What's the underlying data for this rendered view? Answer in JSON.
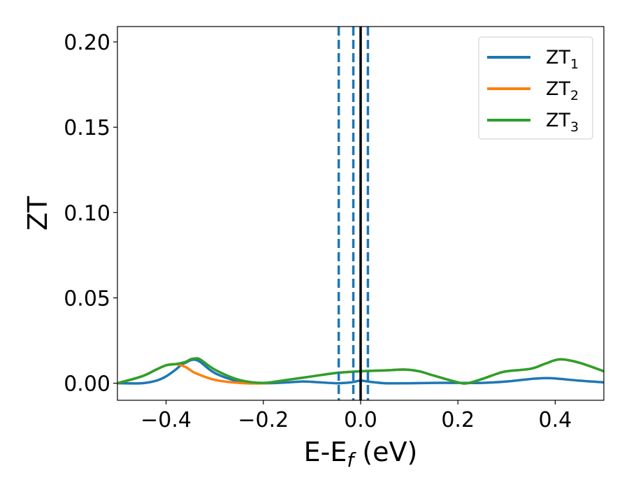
{
  "chart_data": {
    "type": "line",
    "xlabel": "E-E",
    "xlabel_sub": "f",
    "xlabel_suffix": " (eV)",
    "ylabel": "ZT",
    "xlim": [
      -0.5,
      0.5
    ],
    "ylim": [
      -0.01,
      0.209
    ],
    "xticks": [
      -0.4,
      -0.2,
      0.0,
      0.2,
      0.4
    ],
    "xtick_labels": [
      "−0.4",
      "−0.2",
      "0.0",
      "0.2",
      "0.4"
    ],
    "yticks": [
      0.0,
      0.05,
      0.1,
      0.15,
      0.2
    ],
    "ytick_labels": [
      "0.00",
      "0.05",
      "0.10",
      "0.15",
      "0.20"
    ],
    "grid": false,
    "legend_position": "top-right",
    "series": [
      {
        "name": "ZT",
        "sub": "1",
        "color": "#1f77b4",
        "x": [
          -0.5,
          -0.45,
          -0.42,
          -0.4,
          -0.38,
          -0.37,
          -0.36,
          -0.345,
          -0.33,
          -0.3,
          -0.25,
          -0.2,
          -0.15,
          -0.12,
          -0.1,
          -0.05,
          -0.02,
          0.0,
          0.02,
          0.05,
          0.1,
          0.15,
          0.2,
          0.25,
          0.3,
          0.35,
          0.38,
          0.4,
          0.45,
          0.5
        ],
        "y": [
          0.0,
          0.0,
          0.0015,
          0.004,
          0.008,
          0.0105,
          0.012,
          0.0138,
          0.0125,
          0.006,
          0.001,
          0.0,
          0.0005,
          0.001,
          0.0008,
          0.0,
          0.0005,
          0.0015,
          0.0008,
          0.0,
          0.0,
          0.0002,
          0.0002,
          0.0002,
          0.001,
          0.0025,
          0.003,
          0.0028,
          0.0015,
          0.0005
        ]
      },
      {
        "name": "ZT",
        "sub": "2",
        "color": "#ff7f0e",
        "x": [
          -0.5,
          -0.45,
          -0.42,
          -0.4,
          -0.38,
          -0.36,
          -0.34,
          -0.3,
          -0.25,
          -0.2,
          -0.15,
          -0.1,
          -0.05,
          0.0,
          0.05,
          0.09,
          0.12,
          0.15,
          0.2,
          0.22,
          0.25,
          0.28,
          0.3,
          0.35,
          0.38,
          0.41,
          0.45,
          0.5
        ],
        "y": [
          0.0,
          0.004,
          0.008,
          0.0105,
          0.0112,
          0.0095,
          0.006,
          0.002,
          0.0002,
          0.0,
          0.002,
          0.004,
          0.006,
          0.007,
          0.0075,
          0.008,
          0.007,
          0.0045,
          0.0005,
          0.0,
          0.0025,
          0.0055,
          0.007,
          0.0085,
          0.0115,
          0.014,
          0.012,
          0.007
        ]
      },
      {
        "name": "ZT",
        "sub": "3",
        "color": "#2ca02c",
        "x": [
          -0.5,
          -0.45,
          -0.42,
          -0.4,
          -0.38,
          -0.36,
          -0.35,
          -0.34,
          -0.33,
          -0.3,
          -0.25,
          -0.2,
          -0.15,
          -0.1,
          -0.05,
          0.0,
          0.05,
          0.09,
          0.12,
          0.15,
          0.2,
          0.22,
          0.25,
          0.28,
          0.3,
          0.35,
          0.38,
          0.41,
          0.45,
          0.5
        ],
        "y": [
          0.0,
          0.004,
          0.008,
          0.0105,
          0.0112,
          0.0125,
          0.014,
          0.0145,
          0.014,
          0.008,
          0.002,
          0.0002,
          0.002,
          0.004,
          0.006,
          0.007,
          0.0075,
          0.008,
          0.007,
          0.0045,
          0.0005,
          0.0,
          0.0025,
          0.0055,
          0.007,
          0.0085,
          0.0115,
          0.014,
          0.012,
          0.007
        ]
      }
    ],
    "vlines": [
      {
        "x": 0.0,
        "style": "solid",
        "color": "#000000"
      },
      {
        "x": -0.045,
        "style": "dashed",
        "color": "#1f77b4"
      },
      {
        "x": -0.015,
        "style": "dashed",
        "color": "#1f77b4"
      },
      {
        "x": 0.015,
        "style": "dashed",
        "color": "#1f77b4"
      }
    ]
  }
}
